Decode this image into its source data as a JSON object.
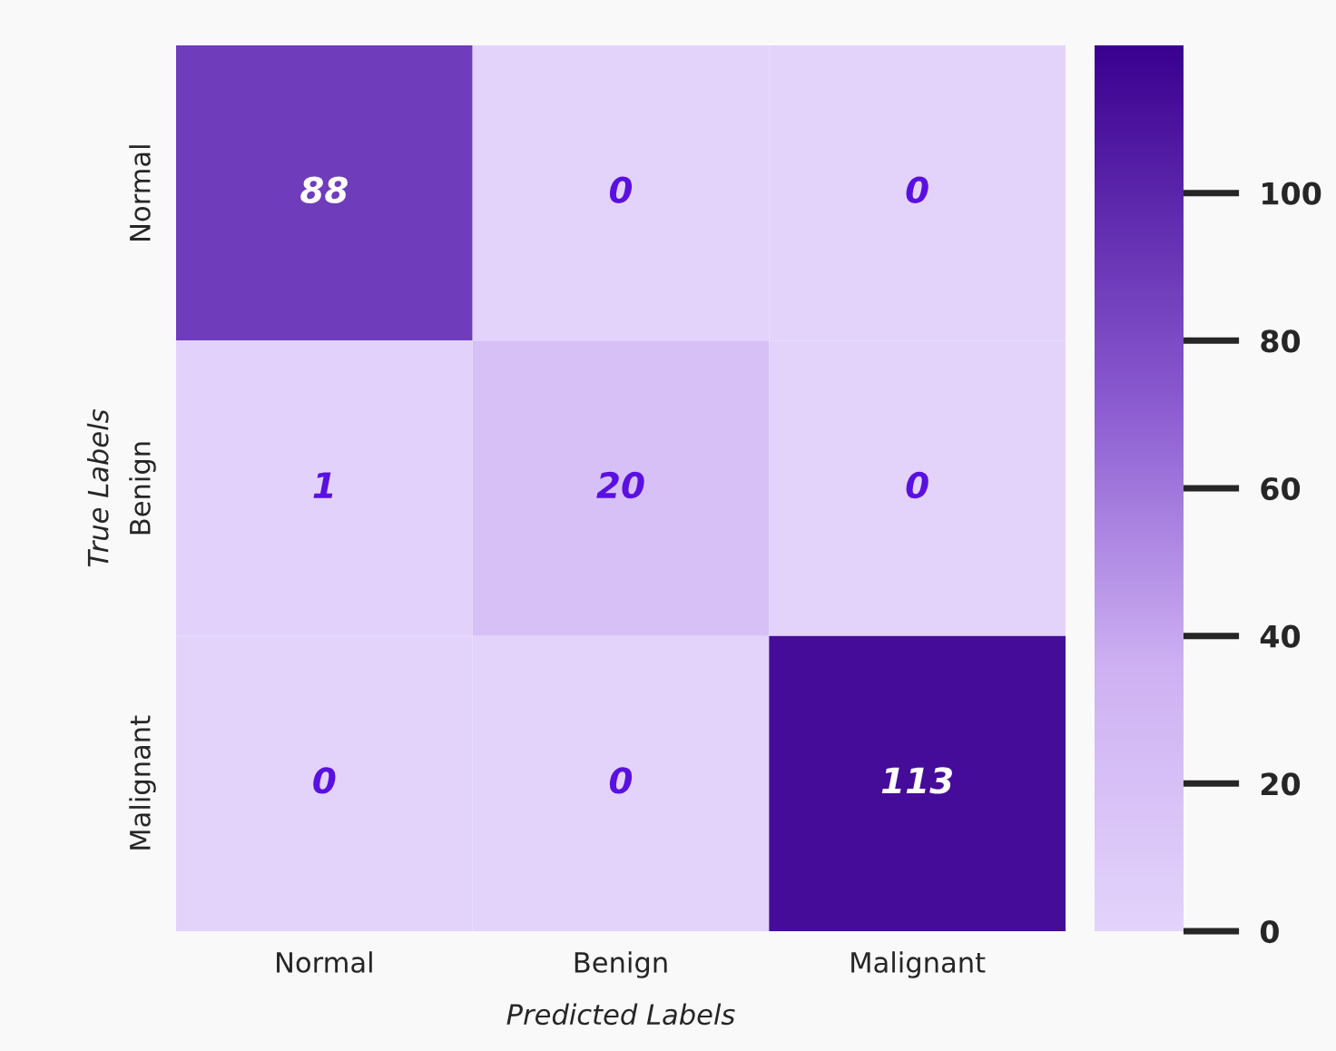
{
  "chart_data": {
    "type": "heatmap",
    "xlabel": "Predicted Labels",
    "ylabel": "True Labels",
    "categories": [
      "Normal",
      "Benign",
      "Malignant"
    ],
    "y_categories": [
      "Normal",
      "Benign",
      "Malignant"
    ],
    "cells": [
      [
        88,
        0,
        0
      ],
      [
        1,
        20,
        0
      ],
      [
        0,
        0,
        113
      ]
    ],
    "clim": [
      0,
      120
    ],
    "cticks": [
      0,
      20,
      40,
      60,
      80,
      100
    ],
    "data_labels": true
  }
}
